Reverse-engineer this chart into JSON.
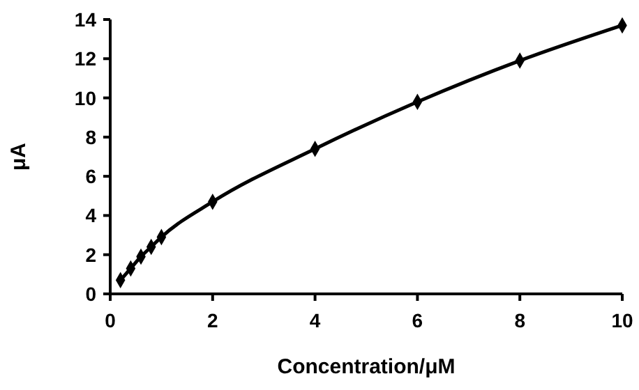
{
  "chart_data": {
    "type": "line",
    "xlabel": "Concentration/μM",
    "ylabel": "μA",
    "x": [
      0.2,
      0.4,
      0.6,
      0.8,
      1,
      2,
      4,
      6,
      8,
      10
    ],
    "series": [
      {
        "color": "#000000",
        "values": [
          0.7,
          1.3,
          1.9,
          2.4,
          2.9,
          4.7,
          7.4,
          9.8,
          11.9,
          13.7
        ]
      }
    ],
    "xlim": [
      0,
      10
    ],
    "xticks": [
      0,
      2,
      4,
      6,
      8,
      10
    ],
    "ylim": [
      0,
      14
    ],
    "yticks": [
      0,
      2,
      4,
      6,
      8,
      10,
      12,
      14
    ],
    "marker": "diamond",
    "line_style": "solid"
  }
}
